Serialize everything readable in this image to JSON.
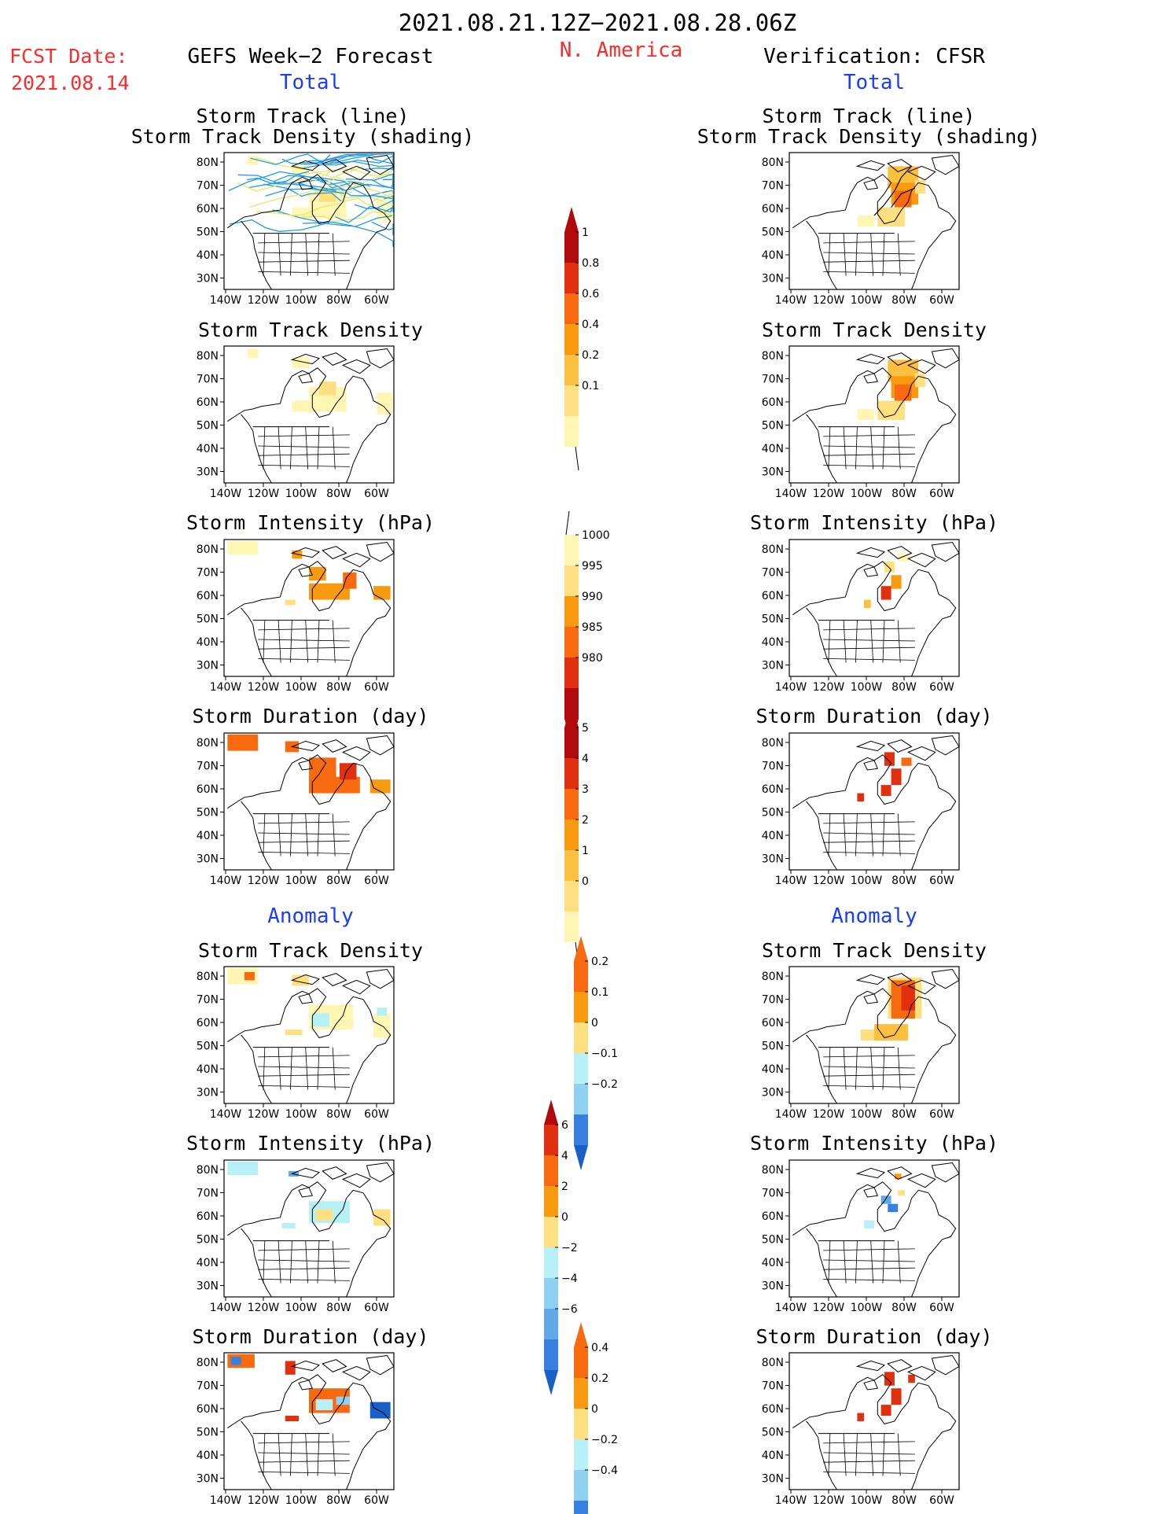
{
  "header": {
    "period": "2021.08.21.12Z−2021.08.28.06Z",
    "region": "N. America",
    "fcst_label": "FCST Date:",
    "fcst_date": "2021.08.14",
    "left_title": "GEFS Week−2 Forecast",
    "right_title": "Verification: CFSR"
  },
  "sections": {
    "total": "Total",
    "anomaly": "Anomaly"
  },
  "panel_titles": {
    "track_line": "Storm Track (line)",
    "track_shading": "Storm Track Density (shading)",
    "density": "Storm Track Density",
    "intensity": "Storm Intensity (hPa)",
    "duration": "Storm Duration (day)"
  },
  "axes": {
    "lat_labels": [
      "80N",
      "70N",
      "60N",
      "50N",
      "40N",
      "30N"
    ],
    "lon_labels": [
      "140W",
      "120W",
      "100W",
      "80W",
      "60W"
    ]
  },
  "colorbars": {
    "density_total": [
      "1",
      "0.8",
      "0.6",
      "0.4",
      "0.2",
      "0.1"
    ],
    "intensity_total": [
      "1000",
      "995",
      "990",
      "985",
      "980"
    ],
    "duration_total": [
      "5",
      "4",
      "3",
      "2",
      "1",
      "0"
    ],
    "density_anom": [
      "0.2",
      "0.1",
      "0",
      "−0.1",
      "−0.2"
    ],
    "intensity_anom": [
      "6",
      "4",
      "2",
      "0",
      "−2",
      "−4",
      "−6"
    ],
    "duration_anom": [
      "0.4",
      "0.2",
      "0",
      "−0.2",
      "−0.4"
    ]
  },
  "colors": {
    "title_red": "#ff2a2a",
    "section_blue": "#1a3cff",
    "track_blue": "#1e9bea",
    "track_yellow": "#e8e860",
    "warm": [
      "#fff6b4",
      "#ffe080",
      "#fbc040",
      "#f89a10",
      "#f86a10",
      "#e03010",
      "#b00a0a"
    ],
    "cool": [
      "#b8f0f8",
      "#90d0f0",
      "#60a8e8",
      "#3880e0",
      "#1860c8"
    ]
  }
}
